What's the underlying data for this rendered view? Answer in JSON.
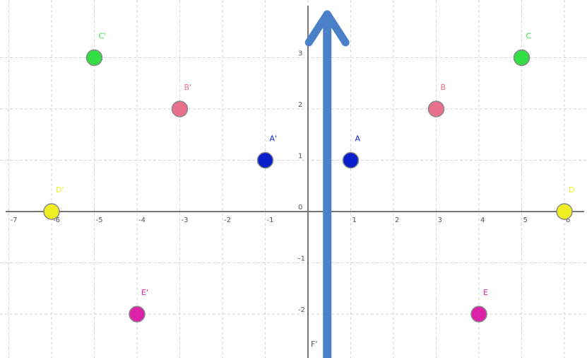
{
  "chart_data": {
    "type": "scatter",
    "x_range": [
      -7.3,
      6.5
    ],
    "y_range": [
      -2.9,
      4.1
    ],
    "grid": true,
    "x_ticks": [
      {
        "value": -7,
        "label": "-7"
      },
      {
        "value": -6,
        "label": "-6"
      },
      {
        "value": -5,
        "label": "-5"
      },
      {
        "value": -4,
        "label": "-4"
      },
      {
        "value": -3,
        "label": "-3"
      },
      {
        "value": -2,
        "label": "-2"
      },
      {
        "value": -1,
        "label": "-1"
      },
      {
        "value": 0,
        "label": "0"
      },
      {
        "value": 1,
        "label": "1"
      },
      {
        "value": 2,
        "label": "2"
      },
      {
        "value": 3,
        "label": "3"
      },
      {
        "value": 4,
        "label": "4"
      },
      {
        "value": 5,
        "label": "5"
      },
      {
        "value": 6,
        "label": "6"
      }
    ],
    "y_ticks": [
      {
        "value": 3,
        "label": "3"
      },
      {
        "value": 2,
        "label": "2"
      },
      {
        "value": 1,
        "label": "1"
      },
      {
        "value": 0,
        "label": "0"
      },
      {
        "value": -1,
        "label": "-1"
      },
      {
        "value": -2,
        "label": "-2"
      }
    ],
    "points": [
      {
        "label": "A",
        "x": 1,
        "y": 1,
        "color": "#0a1ecc"
      },
      {
        "label": "A'",
        "x": -1,
        "y": 1,
        "color": "#0a1ecc"
      },
      {
        "label": "B",
        "x": 3,
        "y": 2,
        "color": "#e8708a"
      },
      {
        "label": "B'",
        "x": -3,
        "y": 2,
        "color": "#e8708a"
      },
      {
        "label": "C",
        "x": 5,
        "y": 3,
        "color": "#33dd44"
      },
      {
        "label": "C'",
        "x": -5,
        "y": 3,
        "color": "#33dd44"
      },
      {
        "label": "D",
        "x": 6,
        "y": 0,
        "color": "#eeee22"
      },
      {
        "label": "D'",
        "x": -6,
        "y": 0,
        "color": "#eeee22"
      },
      {
        "label": "E",
        "x": 4,
        "y": -2,
        "color": "#dd22aa"
      },
      {
        "label": "E'",
        "x": -4,
        "y": -2,
        "color": "#dd22aa"
      }
    ],
    "arrow": {
      "x": 0.45,
      "y_from": -2.9,
      "y_to": 4.0,
      "color": "#4a80c8"
    }
  },
  "labels": {
    "y_axis_bottom_label": "F'"
  }
}
